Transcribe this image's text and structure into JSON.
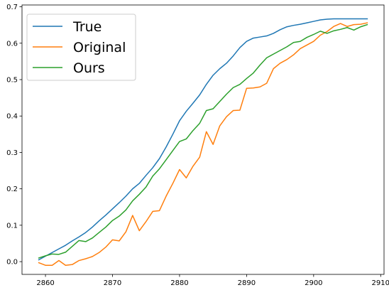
{
  "chart_data": {
    "type": "line",
    "title": "",
    "xlabel": "",
    "ylabel": "",
    "xlim": [
      2856.5,
      2910.5
    ],
    "ylim": [
      -0.035,
      0.705
    ],
    "xticks": [
      2860,
      2870,
      2880,
      2890,
      2900,
      2910
    ],
    "yticks": [
      0.0,
      0.1,
      0.2,
      0.3,
      0.4,
      0.5,
      0.6,
      0.7
    ],
    "xtick_labels": [
      "2860",
      "2870",
      "2880",
      "2890",
      "2900",
      "2910"
    ],
    "ytick_labels": [
      "0.0",
      "0.1",
      "0.2",
      "0.3",
      "0.4",
      "0.5",
      "0.6",
      "0.7"
    ],
    "grid": false,
    "legend_position": "upper-left",
    "x": [
      2859,
      2860,
      2861,
      2862,
      2863,
      2864,
      2865,
      2866,
      2867,
      2868,
      2869,
      2870,
      2871,
      2872,
      2873,
      2874,
      2875,
      2876,
      2877,
      2878,
      2879,
      2880,
      2881,
      2882,
      2883,
      2884,
      2885,
      2886,
      2887,
      2888,
      2889,
      2890,
      2891,
      2892,
      2893,
      2894,
      2895,
      2896,
      2897,
      2898,
      2899,
      2900,
      2901,
      2902,
      2903,
      2904,
      2905,
      2906,
      2907,
      2908
    ],
    "series": [
      {
        "name": "True",
        "color": "#1f77b4",
        "values": [
          0.005,
          0.015,
          0.025,
          0.035,
          0.045,
          0.057,
          0.068,
          0.08,
          0.095,
          0.112,
          0.128,
          0.145,
          0.162,
          0.18,
          0.2,
          0.215,
          0.237,
          0.258,
          0.283,
          0.315,
          0.35,
          0.387,
          0.413,
          0.435,
          0.458,
          0.487,
          0.512,
          0.53,
          0.545,
          0.565,
          0.588,
          0.605,
          0.614,
          0.617,
          0.62,
          0.627,
          0.637,
          0.645,
          0.649,
          0.652,
          0.656,
          0.66,
          0.664,
          0.666,
          0.667,
          0.667,
          0.667,
          0.667,
          0.667,
          0.667
        ]
      },
      {
        "name": "Original",
        "color": "#ff7f0e",
        "values": [
          -0.003,
          -0.01,
          -0.01,
          0.003,
          -0.01,
          -0.008,
          0.003,
          0.008,
          0.014,
          0.025,
          0.04,
          0.06,
          0.057,
          0.082,
          0.127,
          0.085,
          0.11,
          0.138,
          0.14,
          0.18,
          0.215,
          0.253,
          0.23,
          0.262,
          0.287,
          0.357,
          0.322,
          0.373,
          0.398,
          0.415,
          0.416,
          0.476,
          0.477,
          0.48,
          0.49,
          0.53,
          0.545,
          0.555,
          0.568,
          0.585,
          0.595,
          0.605,
          0.622,
          0.632,
          0.646,
          0.654,
          0.646,
          0.651,
          0.652,
          0.656
        ]
      },
      {
        "name": "Ours",
        "color": "#2ca02c",
        "values": [
          0.01,
          0.016,
          0.021,
          0.02,
          0.026,
          0.042,
          0.058,
          0.055,
          0.065,
          0.08,
          0.095,
          0.113,
          0.125,
          0.142,
          0.167,
          0.185,
          0.205,
          0.235,
          0.255,
          0.28,
          0.305,
          0.33,
          0.337,
          0.36,
          0.38,
          0.415,
          0.42,
          0.44,
          0.46,
          0.478,
          0.487,
          0.503,
          0.518,
          0.54,
          0.56,
          0.57,
          0.58,
          0.59,
          0.602,
          0.605,
          0.616,
          0.624,
          0.633,
          0.627,
          0.634,
          0.638,
          0.643,
          0.636,
          0.645,
          0.651
        ]
      }
    ]
  }
}
